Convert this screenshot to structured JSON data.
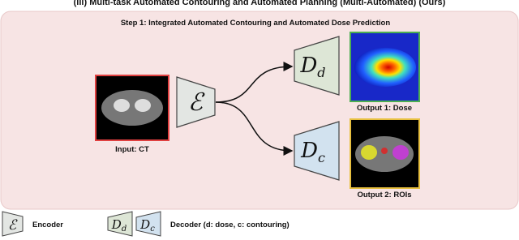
{
  "title": "(iii) Multi-task Automated Contouring and Automated Planning (Multi-Automated) (Ours)",
  "step_title": "Step 1: Integrated Automated Contouring and Automated Dose Prediction",
  "encoder": {
    "symbol": "ℰ"
  },
  "decoders": [
    {
      "symbol": "D",
      "subscript": "d"
    },
    {
      "symbol": "D",
      "subscript": "c"
    }
  ],
  "input": {
    "label": "Input: CT"
  },
  "outputs": [
    {
      "label": "Output 1: Dose"
    },
    {
      "label": "Output 2: ROIs"
    }
  ],
  "legend": {
    "encoder": {
      "symbol": "ℰ",
      "label": "Encoder"
    },
    "decoder": {
      "symbols": [
        {
          "symbol": "D",
          "subscript": "d"
        },
        {
          "symbol": "D",
          "subscript": "c"
        }
      ],
      "label": "Decoder (d: dose, c: contouring)"
    }
  }
}
